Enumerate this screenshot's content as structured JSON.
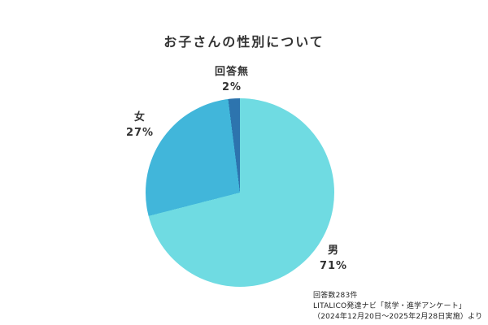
{
  "title": "お子さんの性別について",
  "chart_data": {
    "type": "pie",
    "title": "お子さんの性別について",
    "slices": [
      {
        "label": "男",
        "value": 71,
        "color": "#6FDBE2"
      },
      {
        "label": "女",
        "value": 27,
        "color": "#41B6DA"
      },
      {
        "label": "回答無",
        "value": 2,
        "color": "#2D74AE"
      }
    ],
    "start_angle": "top",
    "direction": "clockwise",
    "legend_position": "none",
    "labels": "outside"
  },
  "labels": {
    "male": {
      "name": "男",
      "pct": "71%"
    },
    "female": {
      "name": "女",
      "pct": "27%"
    },
    "noanswer": {
      "name": "回答無",
      "pct": "2%"
    }
  },
  "footer": {
    "line1": "回答数283件",
    "line2": "LITALICO発達ナビ「就学・進学アンケート」",
    "line3": "（2024年12月20日〜2025年2月28日実施）より"
  }
}
